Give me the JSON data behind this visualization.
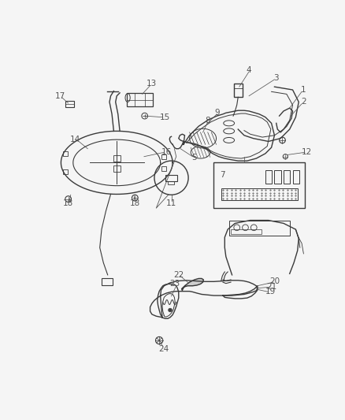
{
  "bg_color": "#f5f5f5",
  "line_color": "#3a3a3a",
  "label_color": "#555555",
  "label_fontsize": 7.5,
  "figsize": [
    4.38,
    5.33
  ],
  "dpi": 100
}
